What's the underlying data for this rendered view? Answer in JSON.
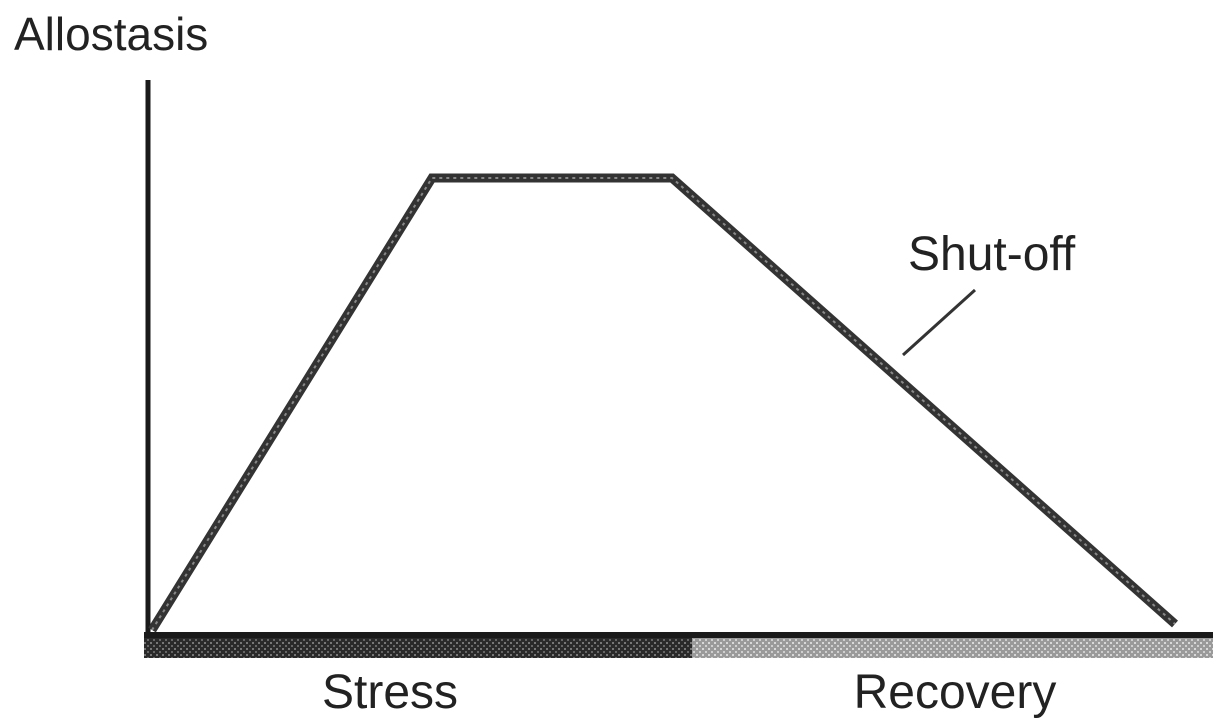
{
  "axis_label": "Allostasis",
  "annotation": "Shut-off",
  "phases": [
    "Stress",
    "Recovery"
  ]
}
